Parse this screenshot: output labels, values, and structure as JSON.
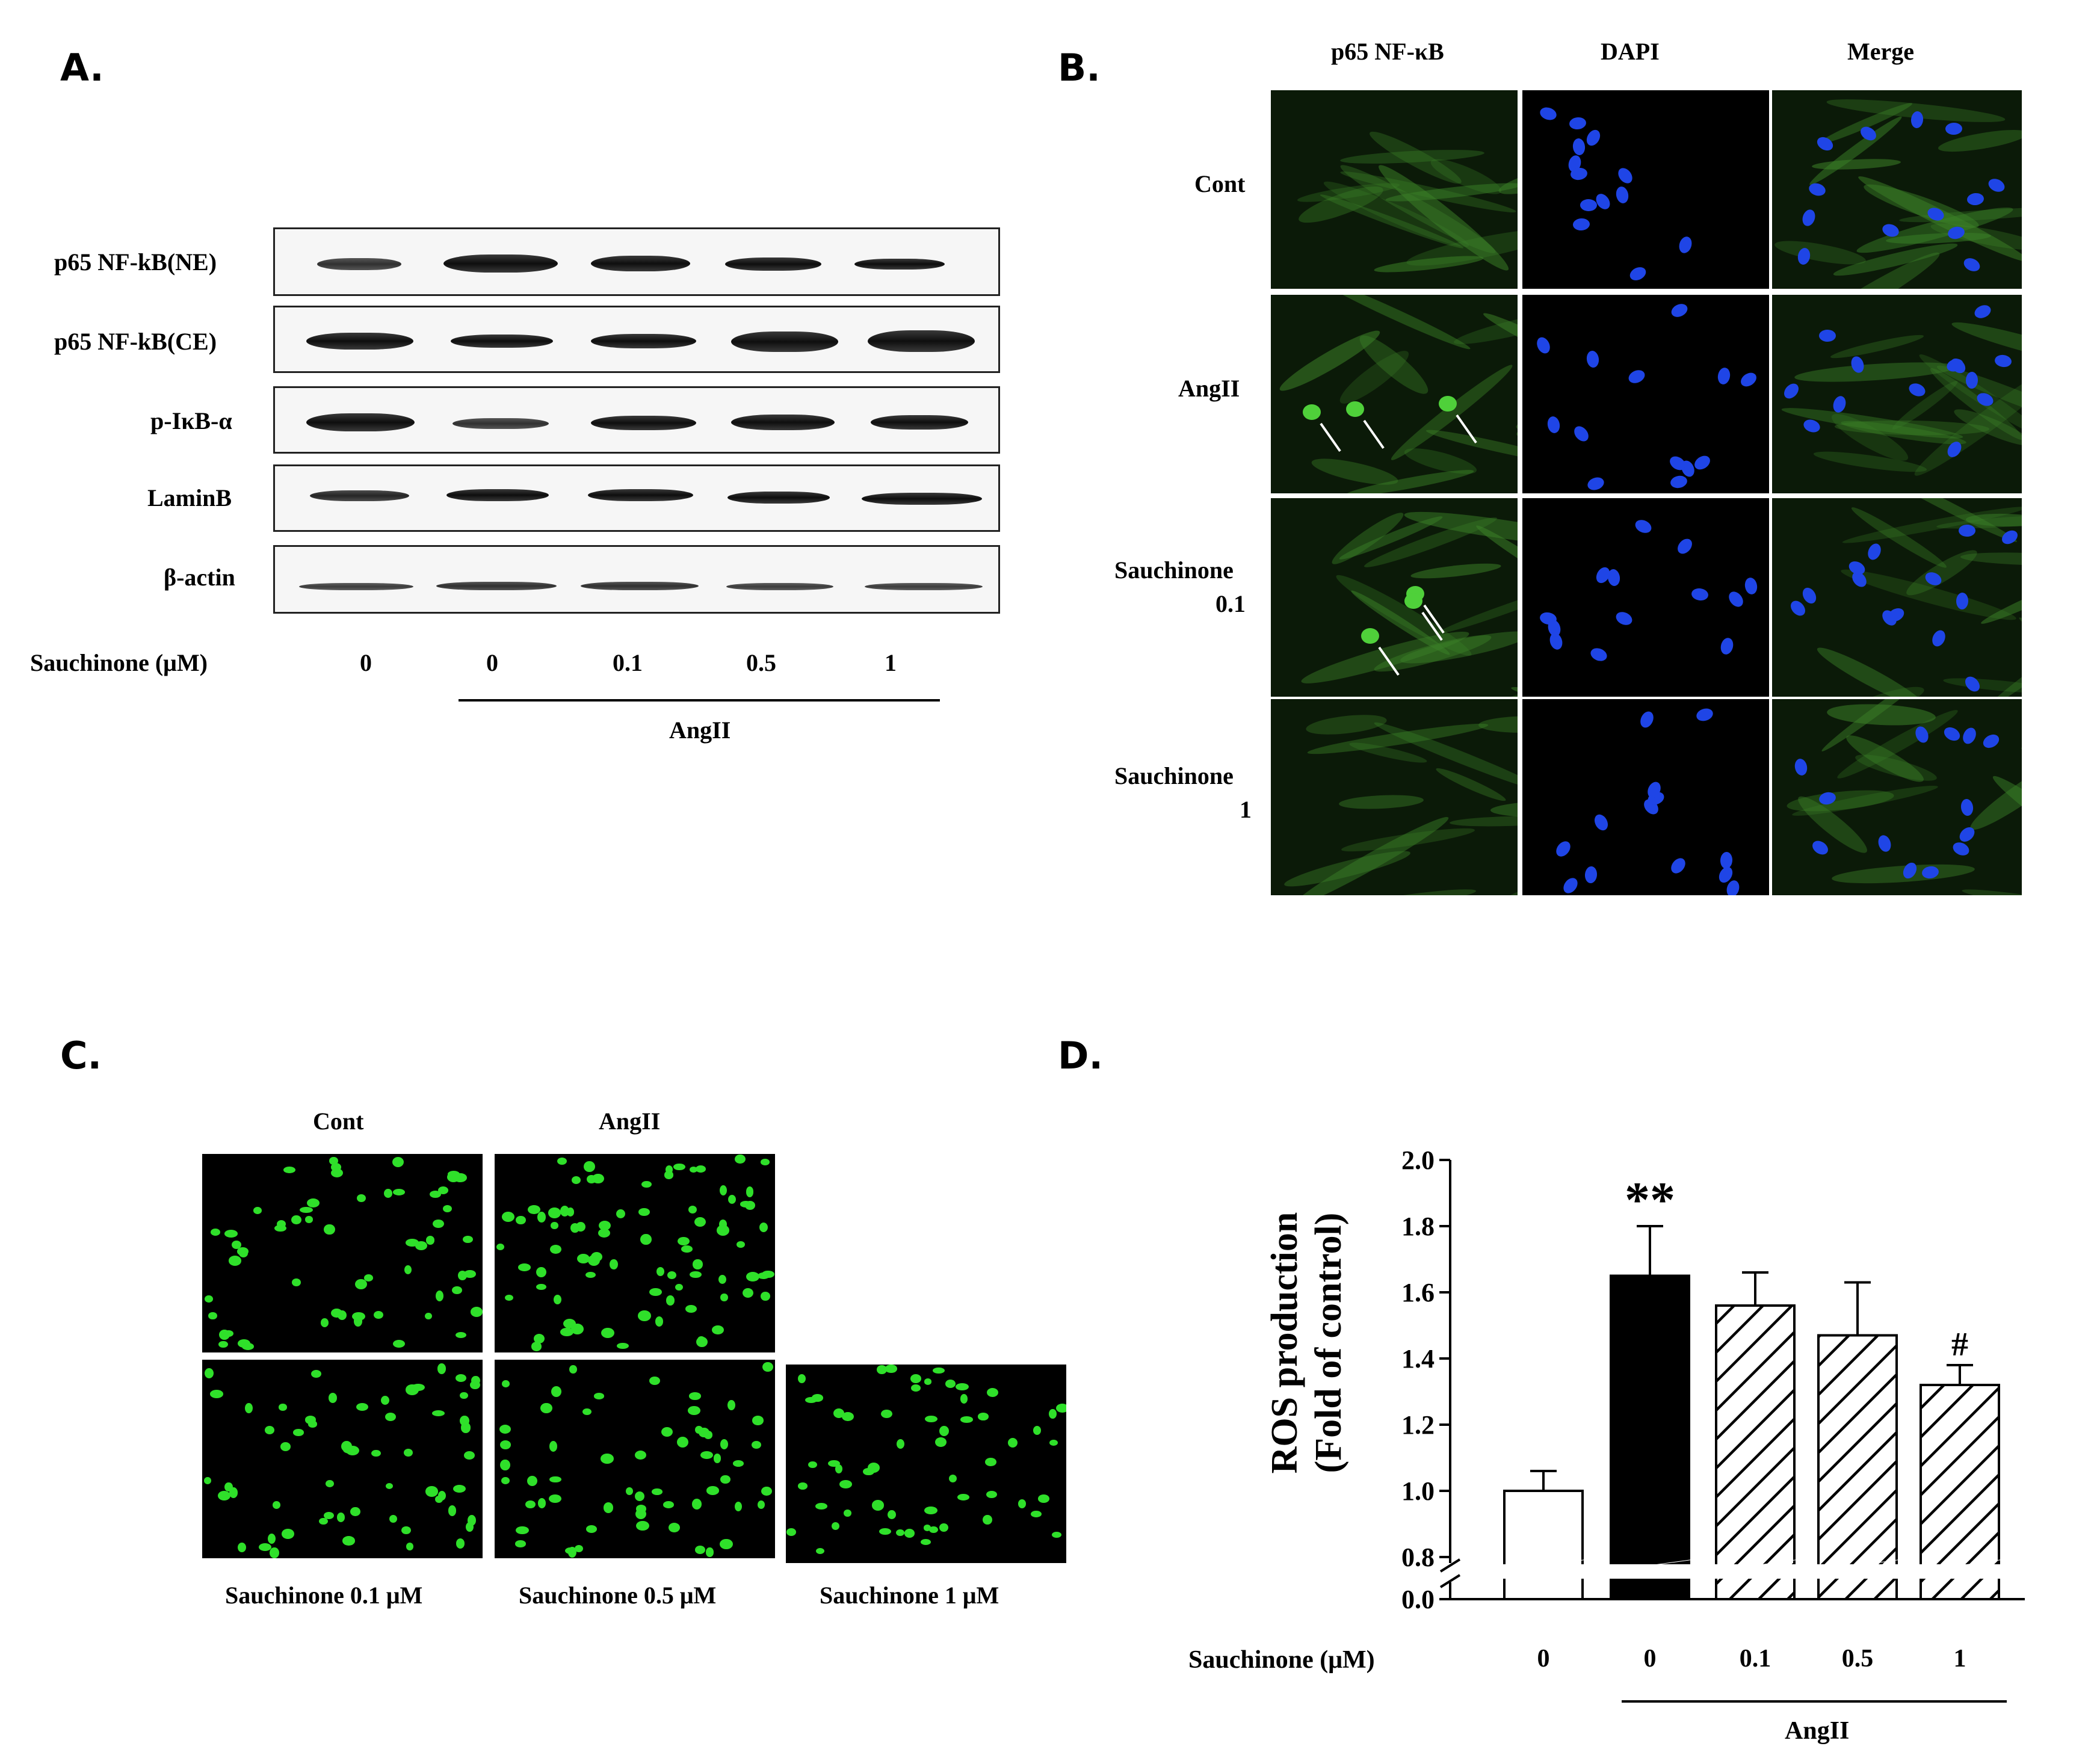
{
  "panels": {
    "a": "A.",
    "b": "B.",
    "c": "C.",
    "d": "D."
  },
  "panel_a": {
    "rows": [
      "p65 NF-kB(NE)",
      "p65 NF-kB(CE)",
      "p-IκB-α",
      "LaminB",
      "β-actin"
    ],
    "dose_label": "Sauchinone (μM)",
    "doses": [
      "0",
      "0",
      "0.1",
      "0.5",
      "1"
    ],
    "group_label": "AngII"
  },
  "panel_b": {
    "columns": [
      "p65 NF-κB",
      "DAPI",
      "Merge"
    ],
    "rows": [
      {
        "line1": "Cont",
        "line2": ""
      },
      {
        "line1": "AngII",
        "line2": ""
      },
      {
        "line1": "Sauchinone",
        "line2": "0.1"
      },
      {
        "line1": "Sauchinone",
        "line2": "1"
      }
    ]
  },
  "panel_c": {
    "top_labels": [
      "Cont",
      "AngII"
    ],
    "bottom_labels": [
      "Sauchinone 0.1 μM",
      "Sauchinone 0.5 μM",
      "Sauchinone 1 μM"
    ]
  },
  "panel_d": {
    "dose_label": "Sauchinone (μM)",
    "group_label": "AngII"
  },
  "chart_data": {
    "type": "bar",
    "categories": [
      "0",
      "0",
      "0.1",
      "0.5",
      "1"
    ],
    "values": [
      1.0,
      1.65,
      1.56,
      1.47,
      1.32
    ],
    "errors": [
      0.06,
      0.15,
      0.1,
      0.16,
      0.06
    ],
    "fills": [
      "white",
      "black",
      "hatched",
      "hatched",
      "hatched"
    ],
    "annotations": [
      "",
      "**",
      "",
      "",
      "#"
    ],
    "ylabel_line1": "ROS production",
    "ylabel_line2": "(Fold of control)",
    "yticks": [
      "0.0",
      "0.8",
      "1.0",
      "1.2",
      "1.4",
      "1.6",
      "1.8",
      "2.0"
    ],
    "ylim": [
      0.8,
      2.0
    ],
    "axis_break": true,
    "grid": false
  }
}
